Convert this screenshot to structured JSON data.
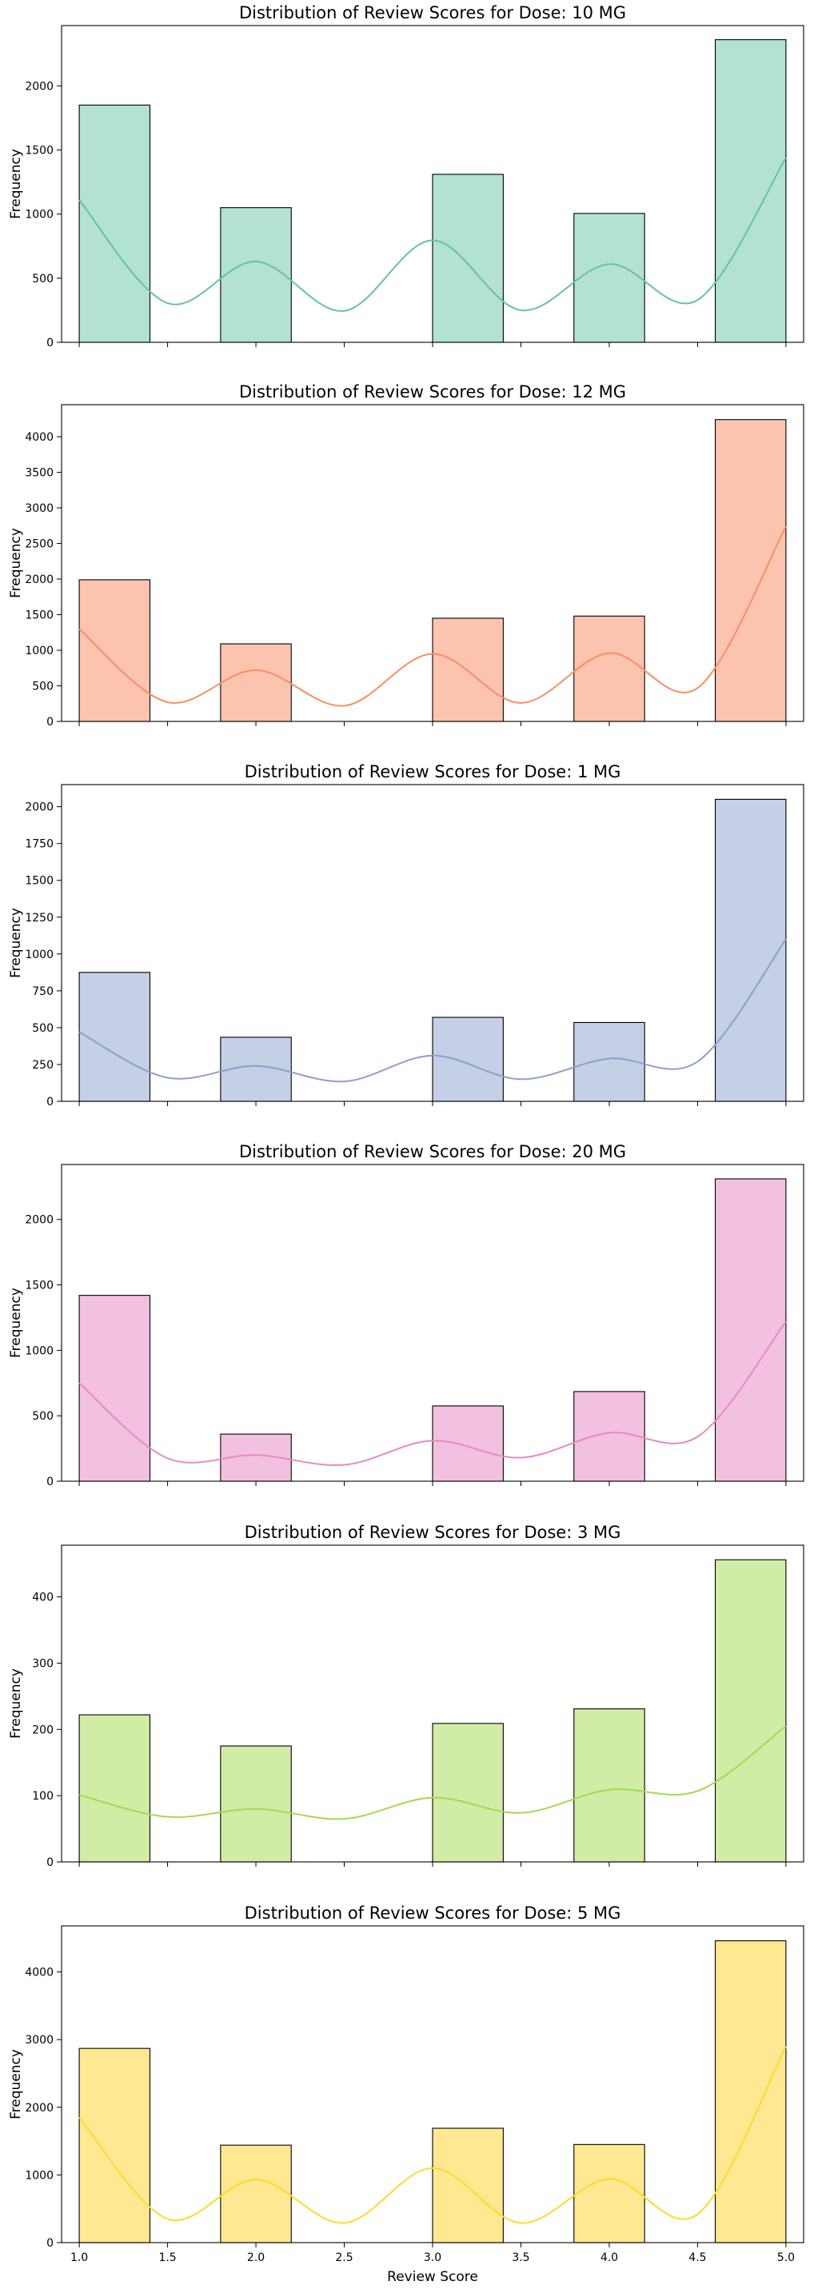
{
  "chart_data": [
    {
      "type": "bar",
      "title": "Distribution of Review Scores for Dose: 10 MG",
      "ylabel": "Frequency",
      "xlabel": "",
      "bins": [
        [
          1.0,
          1.4
        ],
        [
          1.8,
          2.2
        ],
        [
          3.0,
          3.4
        ],
        [
          3.8,
          4.2
        ],
        [
          4.6,
          5.0
        ]
      ],
      "values": [
        1850,
        1050,
        1310,
        1005,
        2360
      ],
      "ylim": [
        0,
        2470
      ],
      "yticks": [
        0,
        500,
        1000,
        1500,
        2000
      ],
      "kde": [
        [
          1.0,
          1110
        ],
        [
          1.5,
          305
        ],
        [
          2.0,
          630
        ],
        [
          2.5,
          245
        ],
        [
          3.0,
          795
        ],
        [
          3.5,
          250
        ],
        [
          4.0,
          610
        ],
        [
          4.5,
          330
        ],
        [
          5.0,
          1440
        ]
      ],
      "bar_color": "#b3e2d0",
      "line_color": "#66c2a5"
    },
    {
      "type": "bar",
      "title": "Distribution of Review Scores for Dose: 12 MG",
      "ylabel": "Frequency",
      "xlabel": "",
      "bins": [
        [
          1.0,
          1.4
        ],
        [
          1.8,
          2.2
        ],
        [
          3.0,
          3.4
        ],
        [
          3.8,
          4.2
        ],
        [
          4.6,
          5.0
        ]
      ],
      "values": [
        1990,
        1090,
        1450,
        1480,
        4240
      ],
      "ylim": [
        0,
        4450
      ],
      "yticks": [
        0,
        500,
        1000,
        1500,
        2000,
        2500,
        3000,
        3500,
        4000
      ],
      "kde": [
        [
          1.0,
          1300
        ],
        [
          1.5,
          270
        ],
        [
          2.0,
          720
        ],
        [
          2.5,
          220
        ],
        [
          3.0,
          950
        ],
        [
          3.5,
          260
        ],
        [
          4.0,
          960
        ],
        [
          4.5,
          470
        ],
        [
          5.0,
          2740
        ]
      ],
      "bar_color": "#fcc4af",
      "line_color": "#fc8d62"
    },
    {
      "type": "bar",
      "title": "Distribution of Review Scores for Dose: 1 MG",
      "ylabel": "Frequency",
      "xlabel": "",
      "bins": [
        [
          1.0,
          1.4
        ],
        [
          1.8,
          2.2
        ],
        [
          3.0,
          3.4
        ],
        [
          3.8,
          4.2
        ],
        [
          4.6,
          5.0
        ]
      ],
      "values": [
        875,
        435,
        570,
        535,
        2050
      ],
      "ylim": [
        0,
        2150
      ],
      "yticks": [
        0,
        250,
        500,
        750,
        1000,
        1250,
        1500,
        1750,
        2000
      ],
      "kde": [
        [
          1.0,
          470
        ],
        [
          1.5,
          160
        ],
        [
          2.0,
          240
        ],
        [
          2.5,
          135
        ],
        [
          3.0,
          310
        ],
        [
          3.5,
          150
        ],
        [
          4.0,
          290
        ],
        [
          4.5,
          270
        ],
        [
          5.0,
          1100
        ]
      ],
      "bar_color": "#c5cfe5",
      "line_color": "#8da0cb"
    },
    {
      "type": "bar",
      "title": "Distribution of Review Scores for Dose: 20 MG",
      "ylabel": "Frequency",
      "xlabel": "",
      "bins": [
        [
          1.0,
          1.4
        ],
        [
          1.8,
          2.2
        ],
        [
          3.0,
          3.4
        ],
        [
          3.8,
          4.2
        ],
        [
          4.6,
          5.0
        ]
      ],
      "values": [
        1420,
        360,
        575,
        685,
        2310
      ],
      "ylim": [
        0,
        2420
      ],
      "yticks": [
        0,
        500,
        1000,
        1500,
        2000
      ],
      "kde": [
        [
          1.0,
          750
        ],
        [
          1.5,
          175
        ],
        [
          2.0,
          200
        ],
        [
          2.5,
          125
        ],
        [
          3.0,
          310
        ],
        [
          3.5,
          180
        ],
        [
          4.0,
          370
        ],
        [
          4.5,
          340
        ],
        [
          5.0,
          1220
        ]
      ],
      "bar_color": "#f2c1e0",
      "line_color": "#e78ac3"
    },
    {
      "type": "bar",
      "title": "Distribution of Review Scores for Dose: 3 MG",
      "ylabel": "Frequency",
      "xlabel": "",
      "bins": [
        [
          1.0,
          1.4
        ],
        [
          1.8,
          2.2
        ],
        [
          3.0,
          3.4
        ],
        [
          3.8,
          4.2
        ],
        [
          4.6,
          5.0
        ]
      ],
      "values": [
        222,
        175,
        209,
        231,
        456
      ],
      "ylim": [
        0,
        478
      ],
      "yticks": [
        0,
        100,
        200,
        300,
        400
      ],
      "kde": [
        [
          1.0,
          101
        ],
        [
          1.5,
          68
        ],
        [
          2.0,
          80
        ],
        [
          2.5,
          65
        ],
        [
          3.0,
          97
        ],
        [
          3.5,
          74
        ],
        [
          4.0,
          109
        ],
        [
          4.5,
          107
        ],
        [
          5.0,
          205
        ]
      ],
      "bar_color": "#d1eca5",
      "line_color": "#a6d854"
    },
    {
      "type": "bar",
      "title": "Distribution of Review Scores for Dose: 5 MG",
      "ylabel": "Frequency",
      "xlabel": "Review Score",
      "bins": [
        [
          1.0,
          1.4
        ],
        [
          1.8,
          2.2
        ],
        [
          3.0,
          3.4
        ],
        [
          3.8,
          4.2
        ],
        [
          4.6,
          5.0
        ]
      ],
      "values": [
        2870,
        1440,
        1690,
        1450,
        4460
      ],
      "ylim": [
        0,
        4680
      ],
      "yticks": [
        0,
        1000,
        2000,
        3000,
        4000
      ],
      "kde": [
        [
          1.0,
          1850
        ],
        [
          1.5,
          350
        ],
        [
          2.0,
          930
        ],
        [
          2.5,
          290
        ],
        [
          3.0,
          1100
        ],
        [
          3.5,
          290
        ],
        [
          4.0,
          940
        ],
        [
          4.5,
          420
        ],
        [
          5.0,
          2900
        ]
      ],
      "bar_color": "#fee891",
      "line_color": "#ffd92f"
    }
  ],
  "x_axis": {
    "xlim": [
      0.9,
      5.1
    ],
    "ticks": [
      1.0,
      1.5,
      2.0,
      2.5,
      3.0,
      3.5,
      4.0,
      4.5,
      5.0
    ],
    "tick_labels": [
      "1.0",
      "1.5",
      "2.0",
      "2.5",
      "3.0",
      "3.5",
      "4.0",
      "4.5",
      "5.0"
    ]
  }
}
